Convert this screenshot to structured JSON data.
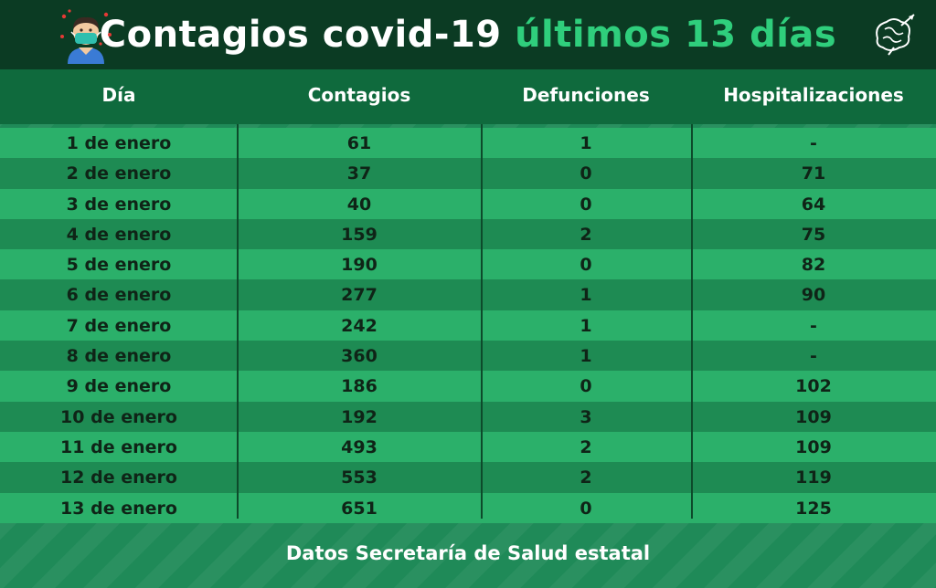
{
  "header": {
    "title_main": "Contagios covid-19",
    "title_accent": "últimos 13 días",
    "avatar_icon": "masked-person-icon",
    "logo_icon": "brain-logo-icon"
  },
  "table": {
    "columns": [
      "Día",
      "Contagios",
      "Defunciones",
      "Hospitalizaciones"
    ],
    "rows": [
      [
        "1 de enero",
        "61",
        "1",
        "-"
      ],
      [
        "2 de enero",
        "37",
        "0",
        "71"
      ],
      [
        "3 de enero",
        "40",
        "0",
        "64"
      ],
      [
        "4 de enero",
        "159",
        "2",
        "75"
      ],
      [
        "5 de enero",
        "190",
        "0",
        "82"
      ],
      [
        "6 de enero",
        "277",
        "1",
        "90"
      ],
      [
        "7 de enero",
        "242",
        "1",
        "-"
      ],
      [
        "8 de enero",
        "360",
        "1",
        "-"
      ],
      [
        "9 de enero",
        "186",
        "0",
        "102"
      ],
      [
        "10 de enero",
        "192",
        "3",
        "109"
      ],
      [
        "11 de enero",
        "493",
        "2",
        "109"
      ],
      [
        "12 de enero",
        "553",
        "2",
        "119"
      ],
      [
        "13 de enero",
        "651",
        "0",
        "125"
      ]
    ]
  },
  "footer": {
    "source": "Datos Secretaría de Salud estatal"
  },
  "colors": {
    "header_bg": "#0b3b23",
    "accent": "#2fce7c",
    "row_light": "#2bb06a",
    "row_dark": "#1e8b53"
  }
}
